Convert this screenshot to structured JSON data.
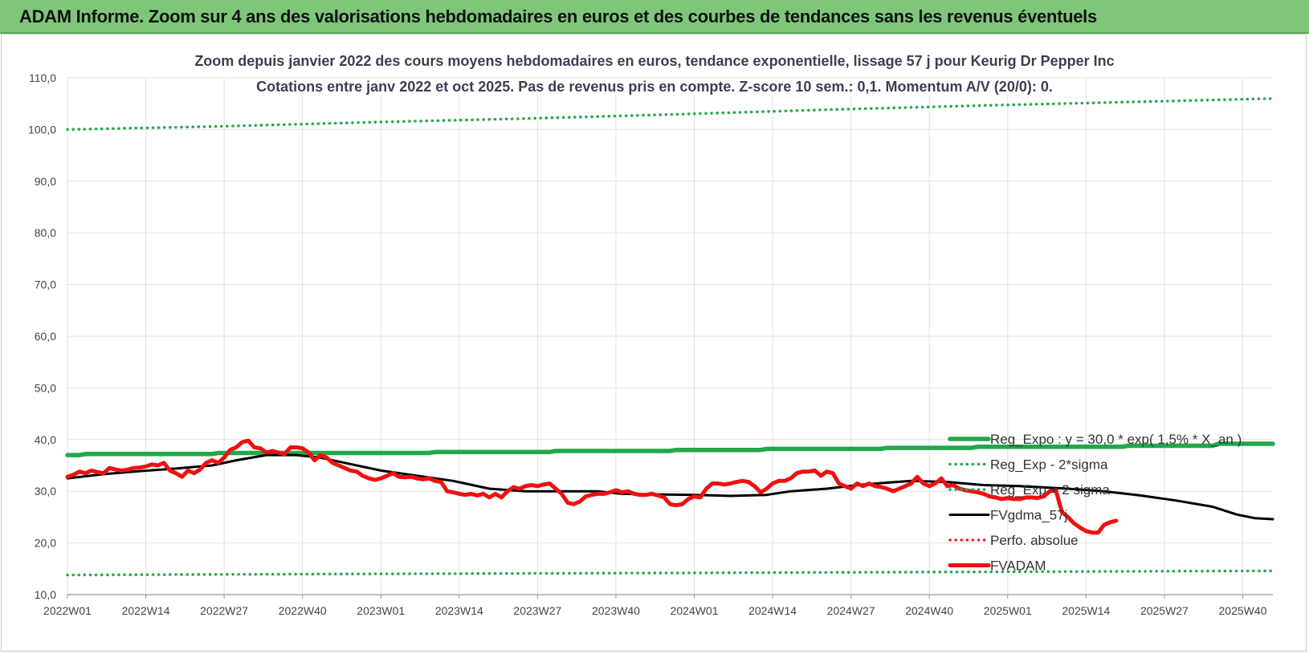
{
  "banner": {
    "text": "ADAM Informe. Zoom sur 4 ans des valorisations hebdomadaires en euros et des courbes de tendances sans les revenus éventuels"
  },
  "chart_data": {
    "type": "line",
    "title": "Zoom depuis janvier 2022 des cours moyens hebdomadaires en euros, tendance exponentielle, lissage 57 j pour Keurig Dr Pepper Inc",
    "subtitle": "Cotations entre janv 2022 et oct 2025. Pas de revenus pris en compte. Z-score 10 sem.: 0,1. Momentum A/V (20/0): 0.",
    "xlabel": "",
    "ylabel": "",
    "ylim": [
      10,
      110
    ],
    "yticks": [
      "10,0",
      "20,0",
      "30,0",
      "40,0",
      "50,0",
      "60,0",
      "70,0",
      "80,0",
      "90,0",
      "100,0",
      "110,0"
    ],
    "xlim_weeks": [
      0,
      200
    ],
    "xticks": [
      {
        "w": 0,
        "label": "2022W01"
      },
      {
        "w": 13,
        "label": "2022W14"
      },
      {
        "w": 26,
        "label": "2022W27"
      },
      {
        "w": 39,
        "label": "2022W40"
      },
      {
        "w": 52,
        "label": "2023W01"
      },
      {
        "w": 65,
        "label": "2023W14"
      },
      {
        "w": 78,
        "label": "2023W27"
      },
      {
        "w": 91,
        "label": "2023W40"
      },
      {
        "w": 104,
        "label": "2024W01"
      },
      {
        "w": 117,
        "label": "2024W14"
      },
      {
        "w": 130,
        "label": "2024W27"
      },
      {
        "w": 143,
        "label": "2024W40"
      },
      {
        "w": 156,
        "label": "2025W01"
      },
      {
        "w": 169,
        "label": "2025W14"
      },
      {
        "w": 182,
        "label": "2025W27"
      },
      {
        "w": 195,
        "label": "2025W40"
      }
    ],
    "grid": true,
    "legend_position": "bottom-right",
    "series": [
      {
        "name": "Reg_Expo : y = 30,0 * exp( 1,5% * X_an )",
        "style": "solid-thick",
        "color": "#22a84a",
        "step": true,
        "points": [
          [
            0,
            37.0
          ],
          [
            2,
            37.0
          ],
          [
            3,
            37.2
          ],
          [
            24,
            37.2
          ],
          [
            25,
            37.4
          ],
          [
            60,
            37.4
          ],
          [
            61,
            37.6
          ],
          [
            80,
            37.6
          ],
          [
            81,
            37.8
          ],
          [
            100,
            37.8
          ],
          [
            101,
            38.0
          ],
          [
            115,
            38.0
          ],
          [
            116,
            38.2
          ],
          [
            135,
            38.2
          ],
          [
            136,
            38.4
          ],
          [
            150,
            38.4
          ],
          [
            151,
            38.6
          ],
          [
            175,
            38.6
          ],
          [
            176,
            38.8
          ],
          [
            190,
            38.8
          ],
          [
            191,
            39.2
          ],
          [
            200,
            39.2
          ]
        ]
      },
      {
        "name": "Reg_Exp - 2*sigma",
        "style": "dotted",
        "color": "#22a84a",
        "points": [
          [
            0,
            13.8
          ],
          [
            50,
            14.0
          ],
          [
            100,
            14.2
          ],
          [
            150,
            14.4
          ],
          [
            200,
            14.6
          ]
        ]
      },
      {
        "name": "Reg_Exp + 2 sigma",
        "style": "dotted",
        "color": "#22a84a",
        "points": [
          [
            0,
            100.0
          ],
          [
            25,
            100.6
          ],
          [
            50,
            101.4
          ],
          [
            75,
            102.1
          ],
          [
            100,
            102.9
          ],
          [
            125,
            103.8
          ],
          [
            150,
            104.6
          ],
          [
            175,
            105.3
          ],
          [
            200,
            106.0
          ]
        ]
      },
      {
        "name": "FVgdma_57j",
        "style": "solid",
        "color": "#000000",
        "points": [
          [
            0,
            32.5
          ],
          [
            6,
            33.3
          ],
          [
            12,
            33.9
          ],
          [
            18,
            34.4
          ],
          [
            24,
            35.0
          ],
          [
            28,
            36.0
          ],
          [
            33,
            37.0
          ],
          [
            38,
            37.0
          ],
          [
            42,
            36.5
          ],
          [
            46,
            35.5
          ],
          [
            52,
            34.0
          ],
          [
            58,
            33.0
          ],
          [
            64,
            32.0
          ],
          [
            70,
            30.5
          ],
          [
            76,
            30.0
          ],
          [
            82,
            30.0
          ],
          [
            88,
            30.0
          ],
          [
            92,
            29.5
          ],
          [
            98,
            29.4
          ],
          [
            104,
            29.3
          ],
          [
            110,
            29.1
          ],
          [
            116,
            29.3
          ],
          [
            120,
            30.0
          ],
          [
            126,
            30.5
          ],
          [
            132,
            31.3
          ],
          [
            140,
            32.0
          ],
          [
            146,
            31.8
          ],
          [
            152,
            31.2
          ],
          [
            158,
            31.0
          ],
          [
            166,
            30.5
          ],
          [
            172,
            30.0
          ],
          [
            178,
            29.2
          ],
          [
            184,
            28.2
          ],
          [
            190,
            27.0
          ],
          [
            194,
            25.5
          ],
          [
            197,
            24.8
          ],
          [
            200,
            24.6
          ]
        ]
      },
      {
        "name": "Perfo. absolue",
        "style": "dotted",
        "color": "#e8262a",
        "points": []
      },
      {
        "name": "FVADAM",
        "style": "solid-thick",
        "color": "#ee1111",
        "points": [
          [
            0,
            32.8
          ],
          [
            1,
            33.2
          ],
          [
            2,
            33.8
          ],
          [
            3,
            33.5
          ],
          [
            4,
            34.0
          ],
          [
            5,
            33.7
          ],
          [
            6,
            33.5
          ],
          [
            7,
            34.5
          ],
          [
            8,
            34.2
          ],
          [
            9,
            34.0
          ],
          [
            10,
            34.2
          ],
          [
            11,
            34.5
          ],
          [
            12,
            34.6
          ],
          [
            13,
            34.8
          ],
          [
            14,
            35.2
          ],
          [
            15,
            35.0
          ],
          [
            16,
            35.5
          ],
          [
            17,
            34.0
          ],
          [
            18,
            33.5
          ],
          [
            19,
            32.8
          ],
          [
            20,
            34.0
          ],
          [
            21,
            33.5
          ],
          [
            22,
            34.2
          ],
          [
            23,
            35.5
          ],
          [
            24,
            36.0
          ],
          [
            25,
            35.5
          ],
          [
            26,
            36.5
          ],
          [
            27,
            38.0
          ],
          [
            28,
            38.5
          ],
          [
            29,
            39.5
          ],
          [
            30,
            39.8
          ],
          [
            31,
            38.5
          ],
          [
            32,
            38.3
          ],
          [
            33,
            37.5
          ],
          [
            34,
            37.8
          ],
          [
            35,
            37.5
          ],
          [
            36,
            37.2
          ],
          [
            37,
            38.5
          ],
          [
            38,
            38.5
          ],
          [
            39,
            38.3
          ],
          [
            40,
            37.5
          ],
          [
            41,
            36.0
          ],
          [
            42,
            37.0
          ],
          [
            43,
            36.5
          ],
          [
            44,
            35.5
          ],
          [
            45,
            35.0
          ],
          [
            46,
            34.5
          ],
          [
            47,
            34.0
          ],
          [
            48,
            33.8
          ],
          [
            49,
            33.0
          ],
          [
            50,
            32.5
          ],
          [
            51,
            32.2
          ],
          [
            52,
            32.5
          ],
          [
            53,
            33.0
          ],
          [
            54,
            33.5
          ],
          [
            55,
            32.8
          ],
          [
            56,
            32.7
          ],
          [
            57,
            32.8
          ],
          [
            58,
            32.5
          ],
          [
            59,
            32.3
          ],
          [
            60,
            32.5
          ],
          [
            61,
            32.0
          ],
          [
            62,
            31.8
          ],
          [
            63,
            30.0
          ],
          [
            64,
            29.8
          ],
          [
            65,
            29.5
          ],
          [
            66,
            29.3
          ],
          [
            67,
            29.5
          ],
          [
            68,
            29.2
          ],
          [
            69,
            29.5
          ],
          [
            70,
            28.8
          ],
          [
            71,
            29.5
          ],
          [
            72,
            28.8
          ],
          [
            73,
            30.0
          ],
          [
            74,
            30.8
          ],
          [
            75,
            30.5
          ],
          [
            76,
            31.0
          ],
          [
            77,
            31.2
          ],
          [
            78,
            31.0
          ],
          [
            79,
            31.3
          ],
          [
            80,
            31.5
          ],
          [
            81,
            30.5
          ],
          [
            82,
            29.5
          ],
          [
            83,
            27.8
          ],
          [
            84,
            27.5
          ],
          [
            85,
            28.0
          ],
          [
            86,
            29.0
          ],
          [
            87,
            29.3
          ],
          [
            88,
            29.5
          ],
          [
            89,
            29.5
          ],
          [
            90,
            29.8
          ],
          [
            91,
            30.2
          ],
          [
            92,
            29.8
          ],
          [
            93,
            30.0
          ],
          [
            94,
            29.5
          ],
          [
            95,
            29.3
          ],
          [
            96,
            29.3
          ],
          [
            97,
            29.5
          ],
          [
            98,
            29.2
          ],
          [
            99,
            28.8
          ],
          [
            100,
            27.5
          ],
          [
            101,
            27.3
          ],
          [
            102,
            27.5
          ],
          [
            103,
            28.5
          ],
          [
            104,
            29.0
          ],
          [
            105,
            28.8
          ],
          [
            106,
            30.5
          ],
          [
            107,
            31.5
          ],
          [
            108,
            31.5
          ],
          [
            109,
            31.3
          ],
          [
            110,
            31.5
          ],
          [
            111,
            31.8
          ],
          [
            112,
            32.0
          ],
          [
            113,
            31.8
          ],
          [
            114,
            31.0
          ],
          [
            115,
            29.8
          ],
          [
            116,
            30.5
          ],
          [
            117,
            31.5
          ],
          [
            118,
            32.0
          ],
          [
            119,
            32.0
          ],
          [
            120,
            32.5
          ],
          [
            121,
            33.5
          ],
          [
            122,
            33.8
          ],
          [
            123,
            33.8
          ],
          [
            124,
            34.0
          ],
          [
            125,
            33.0
          ],
          [
            126,
            33.8
          ],
          [
            127,
            33.5
          ],
          [
            128,
            31.5
          ],
          [
            129,
            31.0
          ],
          [
            130,
            30.5
          ],
          [
            131,
            31.5
          ],
          [
            132,
            31.0
          ],
          [
            133,
            31.5
          ],
          [
            134,
            31.0
          ],
          [
            135,
            30.8
          ],
          [
            136,
            30.5
          ],
          [
            137,
            30.0
          ],
          [
            138,
            30.5
          ],
          [
            139,
            31.0
          ],
          [
            140,
            31.5
          ],
          [
            141,
            32.8
          ],
          [
            142,
            31.5
          ],
          [
            143,
            31.0
          ],
          [
            144,
            31.5
          ],
          [
            145,
            32.5
          ],
          [
            146,
            31.0
          ],
          [
            147,
            31.2
          ],
          [
            148,
            30.5
          ],
          [
            149,
            30.2
          ],
          [
            150,
            30.0
          ],
          [
            151,
            29.8
          ],
          [
            152,
            29.5
          ],
          [
            153,
            29.0
          ],
          [
            154,
            28.8
          ],
          [
            155,
            28.5
          ],
          [
            156,
            28.7
          ],
          [
            157,
            28.5
          ],
          [
            158,
            28.5
          ],
          [
            159,
            28.8
          ],
          [
            160,
            28.8
          ],
          [
            161,
            28.7
          ],
          [
            162,
            29.0
          ],
          [
            163,
            30.0
          ],
          [
            164,
            30.2
          ],
          [
            165,
            26.0
          ],
          [
            166,
            25.0
          ],
          [
            167,
            23.8
          ],
          [
            168,
            23.0
          ],
          [
            169,
            22.3
          ],
          [
            170,
            22.0
          ],
          [
            171,
            22.0
          ],
          [
            172,
            23.5
          ],
          [
            173,
            24.0
          ],
          [
            174,
            24.3
          ]
        ]
      }
    ]
  }
}
